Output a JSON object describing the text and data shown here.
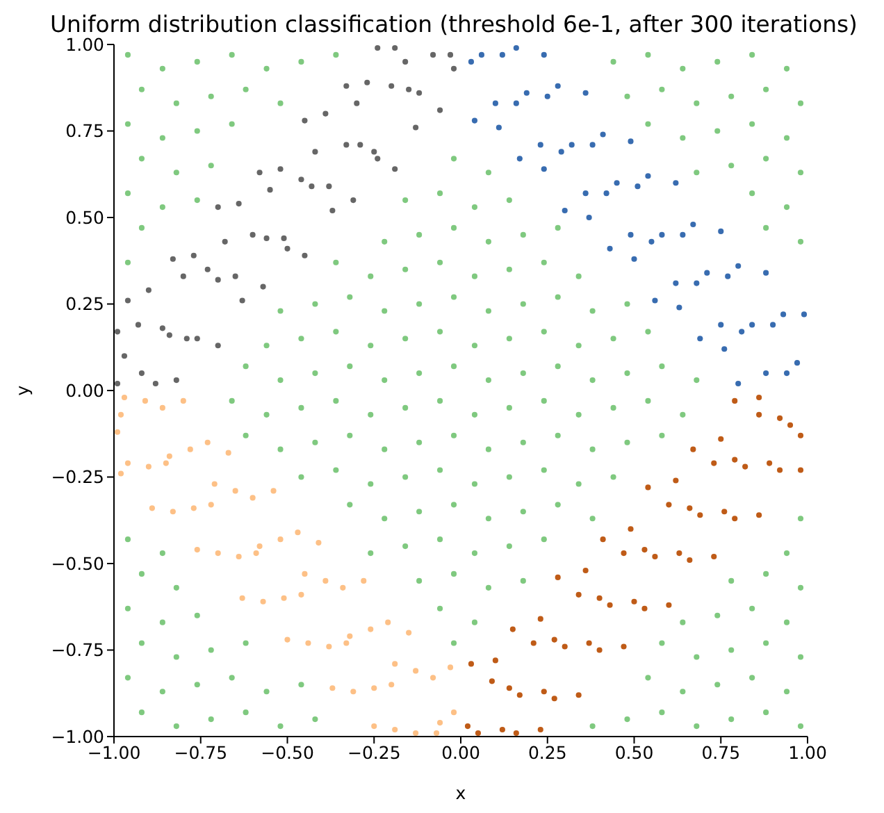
{
  "chart_data": {
    "type": "scatter",
    "title": "Uniform distribution classification (threshold 6e-1, after 300 iterations)",
    "xlabel": "x",
    "ylabel": "y",
    "xlim": [
      -1,
      1
    ],
    "ylim": [
      -1,
      1
    ],
    "xticks": [
      {
        "value": -1,
        "label": "−1.00"
      },
      {
        "value": -0.75,
        "label": "−0.75"
      },
      {
        "value": -0.5,
        "label": "−0.50"
      },
      {
        "value": -0.25,
        "label": "−0.25"
      },
      {
        "value": 0,
        "label": "0.00"
      },
      {
        "value": 0.25,
        "label": "0.25"
      },
      {
        "value": 0.5,
        "label": "0.50"
      },
      {
        "value": 0.75,
        "label": "0.75"
      },
      {
        "value": 1,
        "label": "1.00"
      }
    ],
    "yticks": [
      {
        "value": -1,
        "label": "−1.00"
      },
      {
        "value": -0.75,
        "label": "−0.75"
      },
      {
        "value": -0.5,
        "label": "−0.50"
      },
      {
        "value": -0.25,
        "label": "−0.25"
      },
      {
        "value": 0,
        "label": "0.00"
      },
      {
        "value": 0.25,
        "label": "0.25"
      },
      {
        "value": 0.5,
        "label": "0.50"
      },
      {
        "value": 0.75,
        "label": "0.75"
      },
      {
        "value": 1,
        "label": "1.00"
      }
    ],
    "marker": "circle",
    "series": [
      {
        "color": "#7fc97f",
        "x": [
          -0.96,
          -0.86,
          -0.76,
          -0.66,
          -0.56,
          -0.46,
          -0.36,
          0.44,
          0.54,
          0.64,
          0.74,
          0.84,
          0.94,
          -0.92,
          -0.82,
          -0.72,
          -0.62,
          -0.52,
          0.48,
          0.58,
          0.68,
          0.78,
          0.88,
          0.98,
          -0.96,
          -0.86,
          -0.76,
          -0.66,
          0.54,
          0.64,
          0.74,
          0.84,
          0.94,
          -0.92,
          -0.82,
          -0.72,
          -0.02,
          0.08,
          0.68,
          0.78,
          0.88,
          0.98,
          -0.96,
          -0.86,
          -0.76,
          -0.16,
          -0.06,
          0.04,
          0.14,
          0.84,
          0.94,
          -0.92,
          -0.22,
          -0.12,
          -0.02,
          0.08,
          0.18,
          0.28,
          0.88,
          0.98,
          -0.96,
          -0.36,
          -0.26,
          -0.16,
          -0.06,
          0.04,
          0.14,
          0.24,
          0.34,
          -0.52,
          -0.42,
          -0.32,
          -0.22,
          -0.12,
          -0.02,
          0.08,
          0.18,
          0.28,
          0.38,
          0.48,
          -0.56,
          -0.46,
          -0.36,
          -0.26,
          -0.16,
          -0.06,
          0.04,
          0.14,
          0.24,
          0.34,
          0.44,
          0.54,
          -0.62,
          -0.52,
          -0.42,
          -0.32,
          -0.22,
          -0.12,
          -0.02,
          0.08,
          0.18,
          0.28,
          0.38,
          0.48,
          0.58,
          0.68,
          -0.66,
          -0.56,
          -0.46,
          -0.36,
          -0.26,
          -0.16,
          -0.06,
          0.04,
          0.14,
          0.24,
          0.34,
          0.44,
          0.54,
          0.64,
          -0.62,
          -0.52,
          -0.42,
          -0.32,
          -0.22,
          -0.12,
          -0.02,
          0.08,
          0.18,
          0.28,
          0.38,
          0.48,
          0.58,
          -0.46,
          -0.36,
          -0.26,
          -0.16,
          -0.06,
          0.04,
          0.14,
          0.24,
          0.34,
          0.44,
          -0.32,
          -0.22,
          -0.12,
          -0.02,
          0.08,
          0.18,
          0.28,
          0.38,
          0.98,
          -0.96,
          -0.86,
          -0.26,
          -0.16,
          -0.06,
          0.04,
          0.14,
          0.24,
          0.94,
          -0.92,
          -0.82,
          -0.12,
          -0.02,
          0.08,
          0.18,
          0.78,
          0.88,
          0.98,
          -0.96,
          -0.86,
          -0.76,
          -0.06,
          0.04,
          0.64,
          0.74,
          0.84,
          0.94,
          -0.92,
          -0.82,
          -0.72,
          -0.62,
          -0.02,
          0.58,
          0.68,
          0.78,
          0.88,
          0.98,
          -0.96,
          -0.86,
          -0.76,
          -0.66,
          -0.56,
          -0.46,
          0.54,
          0.64,
          0.74,
          0.84,
          0.94,
          -0.92,
          -0.82,
          -0.72,
          -0.62,
          -0.52,
          -0.42,
          0.38,
          0.48,
          0.58,
          0.68,
          0.78,
          0.88,
          0.98
        ],
        "values": [
          0.97,
          0.93,
          0.95,
          0.97,
          0.93,
          0.95,
          0.97,
          0.95,
          0.97,
          0.93,
          0.95,
          0.97,
          0.93,
          0.87,
          0.83,
          0.85,
          0.87,
          0.83,
          0.85,
          0.87,
          0.83,
          0.85,
          0.87,
          0.83,
          0.77,
          0.73,
          0.75,
          0.77,
          0.77,
          0.73,
          0.75,
          0.77,
          0.73,
          0.67,
          0.63,
          0.65,
          0.67,
          0.63,
          0.63,
          0.65,
          0.67,
          0.63,
          0.57,
          0.53,
          0.55,
          0.55,
          0.57,
          0.53,
          0.55,
          0.57,
          0.53,
          0.47,
          0.43,
          0.45,
          0.47,
          0.43,
          0.45,
          0.47,
          0.47,
          0.43,
          0.37,
          0.37,
          0.33,
          0.35,
          0.37,
          0.33,
          0.35,
          0.37,
          0.33,
          0.23,
          0.25,
          0.27,
          0.23,
          0.25,
          0.27,
          0.23,
          0.25,
          0.27,
          0.23,
          0.25,
          0.13,
          0.15,
          0.17,
          0.13,
          0.15,
          0.17,
          0.13,
          0.15,
          0.17,
          0.13,
          0.15,
          0.17,
          0.07,
          0.03,
          0.05,
          0.07,
          0.03,
          0.05,
          0.07,
          0.03,
          0.05,
          0.07,
          0.03,
          0.05,
          0.07,
          0.03,
          -0.03,
          -0.07,
          -0.05,
          -0.03,
          -0.07,
          -0.05,
          -0.03,
          -0.07,
          -0.05,
          -0.03,
          -0.07,
          -0.05,
          -0.03,
          -0.07,
          -0.13,
          -0.17,
          -0.15,
          -0.13,
          -0.17,
          -0.15,
          -0.13,
          -0.17,
          -0.15,
          -0.13,
          -0.17,
          -0.15,
          -0.13,
          -0.25,
          -0.23,
          -0.27,
          -0.25,
          -0.23,
          -0.27,
          -0.25,
          -0.23,
          -0.27,
          -0.25,
          -0.33,
          -0.37,
          -0.35,
          -0.33,
          -0.37,
          -0.35,
          -0.33,
          -0.37,
          -0.37,
          -0.43,
          -0.47,
          -0.47,
          -0.45,
          -0.43,
          -0.47,
          -0.45,
          -0.43,
          -0.47,
          -0.53,
          -0.57,
          -0.55,
          -0.53,
          -0.57,
          -0.55,
          -0.55,
          -0.53,
          -0.57,
          -0.63,
          -0.67,
          -0.65,
          -0.63,
          -0.67,
          -0.67,
          -0.65,
          -0.63,
          -0.67,
          -0.73,
          -0.77,
          -0.75,
          -0.73,
          -0.73,
          -0.73,
          -0.77,
          -0.75,
          -0.73,
          -0.77,
          -0.83,
          -0.87,
          -0.85,
          -0.83,
          -0.87,
          -0.85,
          -0.83,
          -0.87,
          -0.85,
          -0.83,
          -0.87,
          -0.93,
          -0.97,
          -0.95,
          -0.93,
          -0.97,
          -0.95,
          -0.97,
          -0.95,
          -0.93,
          -0.97,
          -0.95,
          -0.93,
          -0.97
        ]
      },
      {
        "color": "#666666",
        "x": [
          -0.82,
          -0.7,
          -0.57,
          -0.45,
          -0.31,
          -0.19,
          -0.06,
          -0.92,
          -0.79,
          -0.65,
          -0.51,
          -0.38,
          -0.25,
          -0.12,
          -0.02,
          -0.97,
          -0.86,
          -0.73,
          -0.6,
          -0.46,
          -0.33,
          -0.2,
          -0.08,
          -0.99,
          -0.9,
          -0.77,
          -0.64,
          -0.52,
          -0.39,
          -0.27,
          -0.19,
          -0.88,
          -0.76,
          -0.63,
          -0.5,
          -0.37,
          -0.24,
          -0.13,
          -0.99,
          -0.84,
          -0.7,
          -0.56,
          -0.43,
          -0.29,
          -0.15,
          -0.03,
          -0.93,
          -0.8,
          -0.68,
          -0.55,
          -0.42,
          -0.3,
          -0.16,
          -0.96,
          -0.83,
          -0.7,
          -0.58,
          -0.45,
          -0.33,
          -0.24
        ],
        "values": [
          0.03,
          0.13,
          0.3,
          0.39,
          0.55,
          0.64,
          0.81,
          0.05,
          0.15,
          0.33,
          0.44,
          0.59,
          0.69,
          0.86,
          0.93,
          0.1,
          0.18,
          0.35,
          0.45,
          0.61,
          0.71,
          0.88,
          0.97,
          0.17,
          0.29,
          0.39,
          0.54,
          0.64,
          0.8,
          0.89,
          0.99,
          0.02,
          0.15,
          0.26,
          0.41,
          0.52,
          0.67,
          0.76,
          0.02,
          0.16,
          0.32,
          0.44,
          0.59,
          0.71,
          0.87,
          0.97,
          0.19,
          0.33,
          0.43,
          0.58,
          0.69,
          0.83,
          0.95,
          0.26,
          0.38,
          0.53,
          0.63,
          0.78,
          0.88,
          0.99
        ]
      },
      {
        "color": "#386cb0",
        "x": [
          0.04,
          0.17,
          0.3,
          0.43,
          0.56,
          0.69,
          0.8,
          0.1,
          0.23,
          0.36,
          0.49,
          0.62,
          0.75,
          0.88,
          0.06,
          0.19,
          0.32,
          0.45,
          0.58,
          0.71,
          0.84,
          0.97,
          0.16,
          0.28,
          0.41,
          0.54,
          0.67,
          0.8,
          0.93,
          0.11,
          0.24,
          0.37,
          0.5,
          0.63,
          0.76,
          0.03,
          0.16,
          0.29,
          0.42,
          0.55,
          0.68,
          0.81,
          0.94,
          0.12,
          0.25,
          0.38,
          0.51,
          0.64,
          0.77,
          0.9,
          0.24,
          0.36,
          0.49,
          0.62,
          0.75,
          0.88,
          0.99
        ],
        "values": [
          0.78,
          0.67,
          0.52,
          0.41,
          0.26,
          0.15,
          0.02,
          0.83,
          0.71,
          0.57,
          0.45,
          0.31,
          0.19,
          0.05,
          0.97,
          0.86,
          0.71,
          0.6,
          0.45,
          0.34,
          0.19,
          0.08,
          0.99,
          0.88,
          0.74,
          0.62,
          0.48,
          0.36,
          0.22,
          0.76,
          0.64,
          0.5,
          0.38,
          0.24,
          0.12,
          0.95,
          0.83,
          0.69,
          0.57,
          0.43,
          0.31,
          0.17,
          0.05,
          0.97,
          0.85,
          0.71,
          0.59,
          0.45,
          0.33,
          0.19,
          0.97,
          0.86,
          0.72,
          0.6,
          0.46,
          0.34,
          0.22
        ]
      },
      {
        "color": "#fdc086",
        "x": [
          -0.8,
          -0.67,
          -0.54,
          -0.41,
          -0.28,
          -0.15,
          -0.03,
          -0.91,
          -0.78,
          -0.65,
          -0.52,
          -0.39,
          -0.26,
          -0.13,
          -0.02,
          -0.98,
          -0.85,
          -0.72,
          -0.59,
          -0.46,
          -0.33,
          -0.2,
          -0.07,
          -0.96,
          -0.83,
          -0.7,
          -0.57,
          -0.44,
          -0.31,
          -0.19,
          -0.86,
          -0.73,
          -0.6,
          -0.47,
          -0.34,
          -0.21,
          -0.08,
          -0.97,
          -0.84,
          -0.71,
          -0.58,
          -0.45,
          -0.32,
          -0.19,
          -0.06,
          -0.99,
          -0.9,
          -0.77,
          -0.64,
          -0.51,
          -0.38,
          -0.25,
          -0.13,
          -0.98,
          -0.89,
          -0.76,
          -0.63,
          -0.5,
          -0.37,
          -0.25
        ],
        "values": [
          -0.03,
          -0.18,
          -0.29,
          -0.44,
          -0.55,
          -0.7,
          -0.8,
          -0.03,
          -0.17,
          -0.29,
          -0.43,
          -0.55,
          -0.69,
          -0.81,
          -0.93,
          -0.07,
          -0.21,
          -0.33,
          -0.47,
          -0.59,
          -0.73,
          -0.85,
          -0.99,
          -0.21,
          -0.35,
          -0.47,
          -0.61,
          -0.73,
          -0.87,
          -0.98,
          -0.05,
          -0.15,
          -0.31,
          -0.41,
          -0.57,
          -0.67,
          -0.83,
          -0.02,
          -0.19,
          -0.27,
          -0.45,
          -0.53,
          -0.71,
          -0.79,
          -0.96,
          -0.12,
          -0.22,
          -0.34,
          -0.48,
          -0.6,
          -0.74,
          -0.86,
          -0.99,
          -0.24,
          -0.34,
          -0.46,
          -0.6,
          -0.72,
          -0.86,
          -0.97
        ]
      },
      {
        "color": "#bf5b17",
        "x": [
          0.03,
          0.15,
          0.28,
          0.41,
          0.54,
          0.67,
          0.79,
          0.09,
          0.21,
          0.34,
          0.47,
          0.6,
          0.73,
          0.86,
          0.05,
          0.17,
          0.3,
          0.43,
          0.56,
          0.69,
          0.82,
          0.95,
          0.16,
          0.27,
          0.4,
          0.53,
          0.66,
          0.79,
          0.92,
          0.1,
          0.23,
          0.36,
          0.49,
          0.62,
          0.75,
          0.86,
          0.02,
          0.14,
          0.27,
          0.4,
          0.53,
          0.66,
          0.79,
          0.92,
          0.12,
          0.24,
          0.37,
          0.5,
          0.63,
          0.76,
          0.89,
          0.98,
          0.23,
          0.34,
          0.47,
          0.6,
          0.73,
          0.86,
          0.98
        ],
        "values": [
          -0.79,
          -0.69,
          -0.54,
          -0.43,
          -0.28,
          -0.17,
          -0.03,
          -0.84,
          -0.73,
          -0.59,
          -0.47,
          -0.33,
          -0.21,
          -0.07,
          -0.99,
          -0.88,
          -0.74,
          -0.62,
          -0.48,
          -0.36,
          -0.22,
          -0.1,
          -0.99,
          -0.89,
          -0.75,
          -0.63,
          -0.49,
          -0.37,
          -0.23,
          -0.78,
          -0.66,
          -0.52,
          -0.4,
          -0.26,
          -0.14,
          -0.02,
          -0.97,
          -0.86,
          -0.72,
          -0.6,
          -0.46,
          -0.34,
          -0.2,
          -0.08,
          -0.98,
          -0.87,
          -0.73,
          -0.61,
          -0.47,
          -0.35,
          -0.21,
          -0.13,
          -0.98,
          -0.88,
          -0.74,
          -0.62,
          -0.48,
          -0.36,
          -0.23
        ]
      }
    ]
  }
}
